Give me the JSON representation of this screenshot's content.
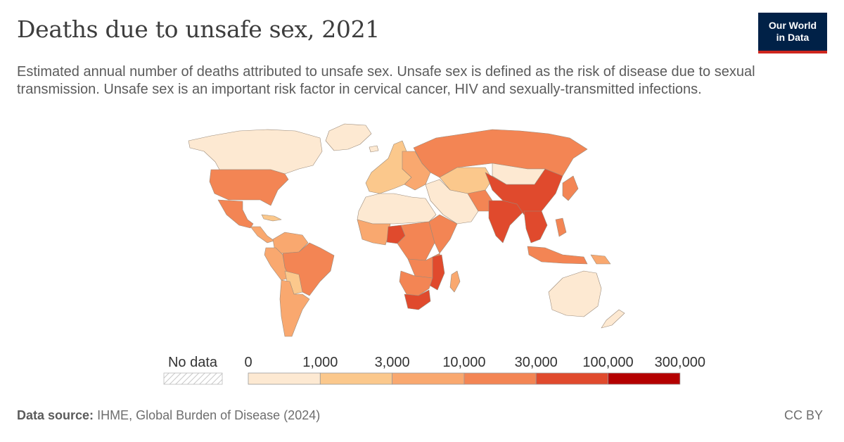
{
  "header": {
    "title": "Deaths due to unsafe sex, 2021",
    "subtitle": "Estimated annual number of deaths attributed to unsafe sex. Unsafe sex is defined as the risk of disease due to sexual transmission. Unsafe sex is an important risk factor in cervical cancer, HIV and sexually-transmitted infections."
  },
  "logo": {
    "line1": "Our World",
    "line2": "in Data"
  },
  "legend": {
    "no_data_label": "No data",
    "thresholds": [
      "0",
      "1,000",
      "3,000",
      "10,000",
      "30,000",
      "100,000",
      "300,000"
    ],
    "colors": [
      "#fde9d2",
      "#fbc88c",
      "#f9a86f",
      "#f38554",
      "#e04a2d",
      "#b40000"
    ]
  },
  "footer": {
    "source_label": "Data source:",
    "source_text": "IHME, Global Burden of Disease (2024)",
    "license": "CC BY"
  },
  "regions": [
    {
      "name": "canada",
      "bin": 0
    },
    {
      "name": "united-states",
      "bin": 3
    },
    {
      "name": "mexico",
      "bin": 3
    },
    {
      "name": "central-america",
      "bin": 2
    },
    {
      "name": "caribbean",
      "bin": 1
    },
    {
      "name": "colombia-venezuela",
      "bin": 2
    },
    {
      "name": "peru-ecuador",
      "bin": 2
    },
    {
      "name": "brazil",
      "bin": 3
    },
    {
      "name": "bolivia-paraguay",
      "bin": 1
    },
    {
      "name": "argentina-chile",
      "bin": 2
    },
    {
      "name": "greenland",
      "bin": 0
    },
    {
      "name": "iceland",
      "bin": 0
    },
    {
      "name": "western-europe",
      "bin": 1
    },
    {
      "name": "eastern-europe",
      "bin": 2
    },
    {
      "name": "russia",
      "bin": 3
    },
    {
      "name": "central-asia",
      "bin": 1
    },
    {
      "name": "middle-east",
      "bin": 0
    },
    {
      "name": "north-africa",
      "bin": 0
    },
    {
      "name": "west-africa",
      "bin": 2
    },
    {
      "name": "nigeria",
      "bin": 4
    },
    {
      "name": "central-africa",
      "bin": 3
    },
    {
      "name": "east-africa",
      "bin": 3
    },
    {
      "name": "tanzania-zambia",
      "bin": 3
    },
    {
      "name": "mozambique-malawi",
      "bin": 4
    },
    {
      "name": "southern-africa",
      "bin": 3
    },
    {
      "name": "south-africa",
      "bin": 4
    },
    {
      "name": "madagascar",
      "bin": 2
    },
    {
      "name": "south-asia",
      "bin": 3
    },
    {
      "name": "india",
      "bin": 4
    },
    {
      "name": "china",
      "bin": 4
    },
    {
      "name": "mongolia",
      "bin": 0
    },
    {
      "name": "japan-korea",
      "bin": 3
    },
    {
      "name": "southeast-asia",
      "bin": 4
    },
    {
      "name": "philippines",
      "bin": 3
    },
    {
      "name": "indonesia",
      "bin": 3
    },
    {
      "name": "papua-new-guinea",
      "bin": 2
    },
    {
      "name": "australia",
      "bin": 0
    },
    {
      "name": "new-zealand",
      "bin": 0
    }
  ]
}
